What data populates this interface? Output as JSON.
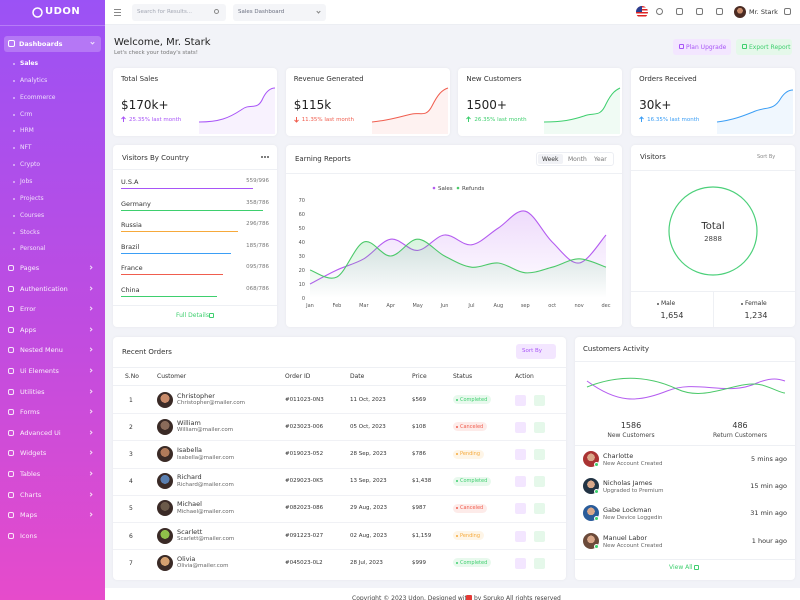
{
  "brand": "UDON",
  "sidebar": {
    "active": "Dashboards",
    "sub": [
      "Sales",
      "Analytics",
      "Ecommerce",
      "Crm",
      "HRM",
      "NFT",
      "Crypto",
      "Jobs",
      "Projects",
      "Courses",
      "Stocks",
      "Personal"
    ],
    "menu": [
      "Pages",
      "Authentication",
      "Error",
      "Apps",
      "Nested Menu",
      "Ui Elements",
      "Utilities",
      "Forms",
      "Advanced Ui",
      "Widgets",
      "Tables",
      "Charts",
      "Maps",
      "Icons"
    ]
  },
  "header": {
    "search": "Search for Results...",
    "select": "Sales Dashboard",
    "user": "Mr. Stark"
  },
  "welcome": {
    "title": "Welcome, Mr. Stark",
    "subtitle": "Let's check your today's stats!",
    "buttons": [
      "Plan Upgrade",
      "Export Report"
    ]
  },
  "stats": [
    {
      "title": "Total Sales",
      "value": "$170k+",
      "change": "25.35% last month",
      "color": "#a855f7"
    },
    {
      "title": "Revenue Generated",
      "value": "$115k",
      "change": "11.35% last month",
      "color": "#f05d4e"
    },
    {
      "title": "New Customers",
      "value": "1500+",
      "change": "26.35% last month",
      "color": "#3ecf6e"
    },
    {
      "title": "Orders Received",
      "value": "30k+",
      "change": "16.35% last month",
      "color": "#3b9ef5"
    }
  ],
  "countries": {
    "title": "Visitors By Country",
    "rows": [
      {
        "name": "U.S.A",
        "count": "559/996",
        "color": "#a855f7"
      },
      {
        "name": "Germany",
        "count": "358/786",
        "color": "#3ecf6e"
      },
      {
        "name": "Russia",
        "count": "296/786",
        "color": "#f6a93b"
      },
      {
        "name": "Brazil",
        "count": "185/786",
        "color": "#3b9ef5"
      },
      {
        "name": "France",
        "count": "095/786",
        "color": "#f05d4e"
      },
      {
        "name": "China",
        "count": "068/786",
        "color": "#3ecf6e"
      }
    ],
    "link": "Full Details"
  },
  "chart_data": {
    "type": "line",
    "title": "Earning Reports",
    "tabs": [
      "Week",
      "Month",
      "Year"
    ],
    "categories": [
      "Jan",
      "Feb",
      "Mar",
      "Apr",
      "May",
      "Jun",
      "Jul",
      "Aug",
      "sep",
      "oct",
      "nov",
      "dec"
    ],
    "series": [
      {
        "name": "Sales",
        "color": "#b45cf0",
        "values": [
          10,
          20,
          28,
          42,
          34,
          45,
          38,
          50,
          62,
          40,
          25,
          45
        ]
      },
      {
        "name": "Refunds",
        "color": "#4cc96a",
        "values": [
          20,
          15,
          40,
          30,
          42,
          30,
          22,
          25,
          18,
          22,
          28,
          22
        ]
      }
    ],
    "ylim": [
      0,
      70
    ],
    "yticks": [
      0,
      10,
      20,
      30,
      40,
      50,
      60,
      70
    ],
    "grid": false,
    "legend": "top"
  },
  "visitors": {
    "title": "Visitors",
    "sort": "Sort By",
    "total_label": "Total",
    "total": "2888",
    "groups": [
      {
        "name": "Male",
        "value": "1,654"
      },
      {
        "name": "Female",
        "value": "1,234"
      }
    ]
  },
  "orders": {
    "title": "Recent Orders",
    "sort": "Sort By",
    "columns": [
      "S.No",
      "Customer",
      "Order ID",
      "Date",
      "Price",
      "Status",
      "Action"
    ],
    "rows": [
      {
        "no": "1",
        "name": "Christopher",
        "email": "Christopher@mailer.com",
        "id": "#011023-0N3",
        "date": "11 Oct, 2023",
        "price": "$569",
        "status": "Completed",
        "color": "#3ecf6e"
      },
      {
        "no": "2",
        "name": "William",
        "email": "William@mailer.com",
        "id": "#023023-006",
        "date": "05 Oct, 2023",
        "price": "$108",
        "status": "Canceled",
        "color": "#f05d4e"
      },
      {
        "no": "3",
        "name": "Isabella",
        "email": "Isabella@mailer.com",
        "id": "#019023-052",
        "date": "28 Sep, 2023",
        "price": "$786",
        "status": "Pending",
        "color": "#f6a93b"
      },
      {
        "no": "4",
        "name": "Richard",
        "email": "Richard@mailer.com",
        "id": "#029023-0K5",
        "date": "13 Sep, 2023",
        "price": "$1,438",
        "status": "Completed",
        "color": "#3ecf6e"
      },
      {
        "no": "5",
        "name": "Michael",
        "email": "Michael@mailer.com",
        "id": "#082023-086",
        "date": "29 Aug, 2023",
        "price": "$987",
        "status": "Canceled",
        "color": "#f05d4e"
      },
      {
        "no": "6",
        "name": "Scarlett",
        "email": "Scarlett@mailer.com",
        "id": "#091223-027",
        "date": "02 Aug, 2023",
        "price": "$1,159",
        "status": "Pending",
        "color": "#f6a93b"
      },
      {
        "no": "7",
        "name": "Olivia",
        "email": "Olivia@mailer.com",
        "id": "#045023-0L2",
        "date": "28 Jul, 2023",
        "price": "$999",
        "status": "Completed",
        "color": "#3ecf6e"
      }
    ]
  },
  "activity": {
    "title": "Customers Activity",
    "stats": [
      {
        "value": "1586",
        "label": "New Customers"
      },
      {
        "value": "486",
        "label": "Return Customers"
      }
    ],
    "items": [
      {
        "name": "Charlotte",
        "action": "New Account Created",
        "time": "5 mins ago"
      },
      {
        "name": "Nicholas James",
        "action": "Upgraded to Premium",
        "time": "15 min ago"
      },
      {
        "name": "Gabe Lockman",
        "action": "New Device Loggedin",
        "time": "31 min ago"
      },
      {
        "name": "Manuel Labor",
        "action": "New Account Created",
        "time": "1 hour ago"
      }
    ],
    "link": "View All"
  },
  "footer": {
    "before": "Copyright © 2023 Udon. Designed with",
    "after": "by Spruko All rights reserved"
  }
}
